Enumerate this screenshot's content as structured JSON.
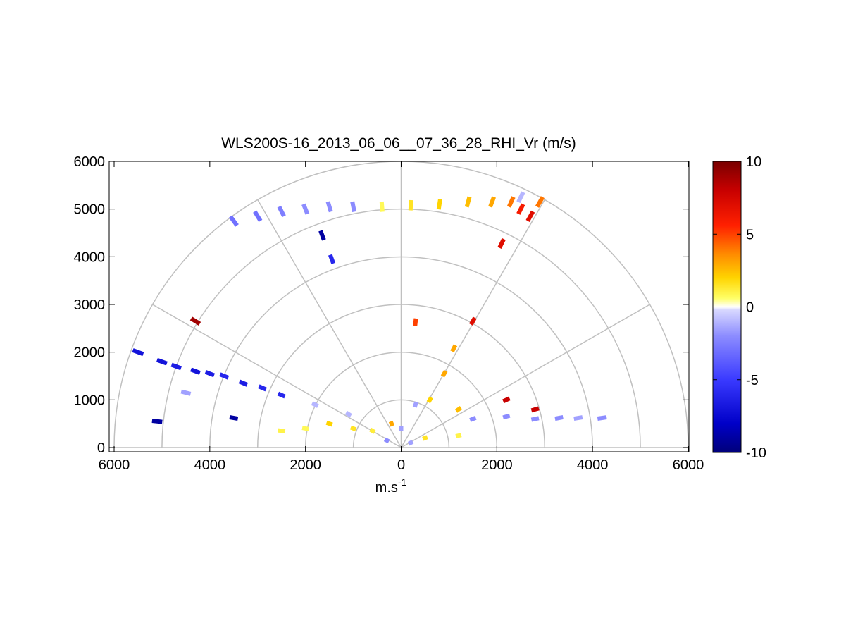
{
  "chart_data": {
    "type": "heatmap",
    "title": "WLS200S-16_2013_06_06__07_36_28_RHI_Vr (m/s)",
    "xlabel": "m.s",
    "xlabel_exponent": "-1",
    "ylabel": "",
    "xlim": [
      -6000,
      6000
    ],
    "ylim": [
      -100,
      6000
    ],
    "x_tick_labels": [
      "6000",
      "4000",
      "2000",
      "0",
      "2000",
      "4000",
      "6000"
    ],
    "x_tick_values": [
      -6000,
      -4000,
      -2000,
      0,
      2000,
      4000,
      6000
    ],
    "y_tick_labels": [
      "0",
      "1000",
      "2000",
      "3000",
      "4000",
      "5000",
      "6000"
    ],
    "y_tick_values": [
      0,
      1000,
      2000,
      3000,
      4000,
      5000,
      6000
    ],
    "polar_grid": {
      "ring_radii": [
        1000,
        2000,
        3000,
        4000,
        5000,
        6000
      ],
      "spoke_angles_deg": [
        0,
        30,
        60,
        90,
        120,
        150,
        180
      ]
    },
    "colorbar": {
      "min": -10,
      "max": 10,
      "tick_labels": [
        "10",
        "5",
        "0",
        "-5",
        "-10"
      ],
      "tick_values": [
        10,
        5,
        0,
        -5,
        -10
      ]
    },
    "grid": true,
    "legend": "none",
    "colors": {
      "grid": "#c0c0c0",
      "axis": "#000000"
    },
    "data_points": [
      {
        "x": -5500,
        "y": 2000,
        "v": -7
      },
      {
        "x": -5000,
        "y": 1800,
        "v": -7
      },
      {
        "x": -4700,
        "y": 1700,
        "v": -6.5
      },
      {
        "x": -4300,
        "y": 1600,
        "v": -7
      },
      {
        "x": -4000,
        "y": 1550,
        "v": -6.5
      },
      {
        "x": -3700,
        "y": 1500,
        "v": -6
      },
      {
        "x": -3300,
        "y": 1350,
        "v": -6.5
      },
      {
        "x": -2900,
        "y": 1250,
        "v": -6
      },
      {
        "x": -2500,
        "y": 1100,
        "v": -6
      },
      {
        "x": -5100,
        "y": 550,
        "v": -9
      },
      {
        "x": -3500,
        "y": 620,
        "v": -9
      },
      {
        "x": -4500,
        "y": 1150,
        "v": -1.5
      },
      {
        "x": -4300,
        "y": 2650,
        "v": 9
      },
      {
        "x": -1650,
        "y": 4450,
        "v": -9
      },
      {
        "x": -1450,
        "y": 3950,
        "v": -6
      },
      {
        "x": -3500,
        "y": 4750,
        "v": -3
      },
      {
        "x": -3000,
        "y": 4850,
        "v": -3
      },
      {
        "x": -2500,
        "y": 4950,
        "v": -2.5
      },
      {
        "x": -2000,
        "y": 5000,
        "v": -2
      },
      {
        "x": -1500,
        "y": 5050,
        "v": -2
      },
      {
        "x": -1000,
        "y": 5050,
        "v": -2
      },
      {
        "x": -400,
        "y": 5050,
        "v": 0.8
      },
      {
        "x": 200,
        "y": 5080,
        "v": 1.5
      },
      {
        "x": 800,
        "y": 5100,
        "v": 2
      },
      {
        "x": 1400,
        "y": 5150,
        "v": 2.5
      },
      {
        "x": 1900,
        "y": 5150,
        "v": 3
      },
      {
        "x": 2300,
        "y": 5150,
        "v": 4
      },
      {
        "x": 2500,
        "y": 5000,
        "v": 6
      },
      {
        "x": 2700,
        "y": 4850,
        "v": 7
      },
      {
        "x": 2500,
        "y": 5250,
        "v": -1
      },
      {
        "x": 2900,
        "y": 5150,
        "v": 4
      },
      {
        "x": 2100,
        "y": 4280,
        "v": 7
      },
      {
        "x": 1500,
        "y": 2650,
        "v": 7
      },
      {
        "x": 300,
        "y": 2630,
        "v": 5
      },
      {
        "x": 1100,
        "y": 2080,
        "v": 3
      },
      {
        "x": 900,
        "y": 1550,
        "v": 3
      },
      {
        "x": 2200,
        "y": 1000,
        "v": 8
      },
      {
        "x": 2800,
        "y": 800,
        "v": 8
      },
      {
        "x": 600,
        "y": 1000,
        "v": 2
      },
      {
        "x": 1200,
        "y": 800,
        "v": 2.5
      },
      {
        "x": 1500,
        "y": 600,
        "v": -2
      },
      {
        "x": 2200,
        "y": 650,
        "v": -2
      },
      {
        "x": 2800,
        "y": 600,
        "v": -2
      },
      {
        "x": 3300,
        "y": 620,
        "v": -2
      },
      {
        "x": 3700,
        "y": 620,
        "v": -1.5
      },
      {
        "x": 4200,
        "y": 620,
        "v": -2
      },
      {
        "x": -1500,
        "y": 500,
        "v": 2
      },
      {
        "x": -1000,
        "y": 400,
        "v": 1.5
      },
      {
        "x": -600,
        "y": 350,
        "v": 1.2
      },
      {
        "x": -200,
        "y": 500,
        "v": 3
      },
      {
        "x": -2500,
        "y": 350,
        "v": 1
      },
      {
        "x": -2000,
        "y": 400,
        "v": 0.8
      },
      {
        "x": 500,
        "y": 200,
        "v": 1.5
      },
      {
        "x": 1200,
        "y": 250,
        "v": 1
      },
      {
        "x": 200,
        "y": 100,
        "v": -1.5
      },
      {
        "x": -300,
        "y": 150,
        "v": -2
      },
      {
        "x": 0,
        "y": 400,
        "v": -1.5
      },
      {
        "x": -1100,
        "y": 700,
        "v": -1
      },
      {
        "x": -1800,
        "y": 900,
        "v": -1
      },
      {
        "x": 300,
        "y": 900,
        "v": -1.5
      }
    ]
  }
}
